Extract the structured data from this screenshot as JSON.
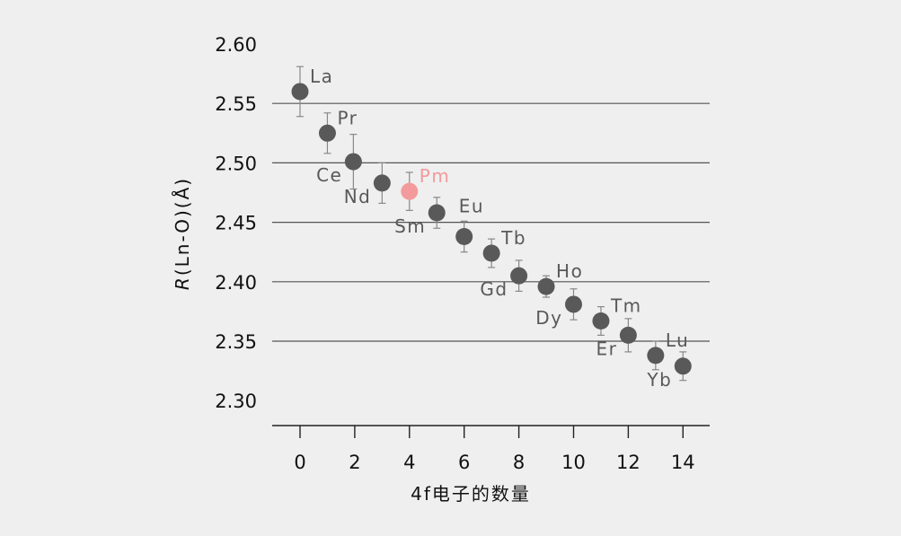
{
  "chart_data": {
    "type": "scatter",
    "title": "",
    "xlabel": "4f电子的数量",
    "ylabel_italic": "R",
    "ylabel_rest": "(Ln-O)(Å)",
    "xlim": [
      -1,
      15
    ],
    "ylim": [
      2.277,
      2.62
    ],
    "x_ticks": [
      0,
      2,
      4,
      6,
      8,
      10,
      12,
      14
    ],
    "y_ticks": [
      2.3,
      2.35,
      2.4,
      2.45,
      2.5,
      2.55,
      2.6
    ],
    "y_tick_labels": [
      "2.30",
      "2.35",
      "2.40",
      "2.45",
      "2.50",
      "2.55",
      "2.60"
    ],
    "horizontal_grid_at": [
      2.35,
      2.4,
      2.45,
      2.5,
      2.55
    ],
    "points": [
      {
        "element": "La",
        "x": 0,
        "y": 2.56,
        "err": 0.021,
        "label_pos": "upper-right"
      },
      {
        "element": "Ce",
        "x": 1.95,
        "y": 2.501,
        "err": 0.023,
        "label_pos": "lower-left"
      },
      {
        "element": "Pr",
        "x": 1,
        "y": 2.525,
        "err": 0.017,
        "label_pos": "upper-right"
      },
      {
        "element": "Nd",
        "x": 3,
        "y": 2.483,
        "err": 0.017,
        "label_pos": "lower-left"
      },
      {
        "element": "Pm",
        "x": 4,
        "y": 2.476,
        "err": 0.016,
        "label_pos": "upper-right",
        "highlight": true
      },
      {
        "element": "Sm",
        "x": 5,
        "y": 2.458,
        "err": 0.013,
        "label_pos": "lower-left"
      },
      {
        "element": "Eu",
        "x": 6,
        "y": 2.438,
        "err": 0.013,
        "label_pos": "upper-left-high"
      },
      {
        "element": "Gd",
        "x": 8,
        "y": 2.405,
        "err": 0.013,
        "label_pos": "lower-left"
      },
      {
        "element": "Tb",
        "x": 7,
        "y": 2.424,
        "err": 0.012,
        "label_pos": "upper-right"
      },
      {
        "element": "Dy",
        "x": 10,
        "y": 2.381,
        "err": 0.013,
        "label_pos": "lower-left"
      },
      {
        "element": "Ho",
        "x": 9,
        "y": 2.396,
        "err": 0.009,
        "label_pos": "upper-right"
      },
      {
        "element": "Er",
        "x": 12,
        "y": 2.355,
        "err": 0.014,
        "label_pos": "lower-left"
      },
      {
        "element": "Tm",
        "x": 11,
        "y": 2.367,
        "err": 0.012,
        "label_pos": "upper-right"
      },
      {
        "element": "Yb",
        "x": 14,
        "y": 2.329,
        "err": 0.012,
        "label_pos": "lower-left"
      },
      {
        "element": "Lu",
        "x": 13,
        "y": 2.338,
        "err": 0.012,
        "label_pos": "upper-right"
      }
    ],
    "grid": true,
    "legend": "none"
  },
  "colors": {
    "background": "#efefef",
    "point": "#595959",
    "highlight_point": "#f39a9c",
    "label": "#595959",
    "highlight_label": "#f39a9c",
    "grid": "#555555",
    "errorbar": "#888888",
    "axis": "#222222",
    "text": "#111111"
  }
}
